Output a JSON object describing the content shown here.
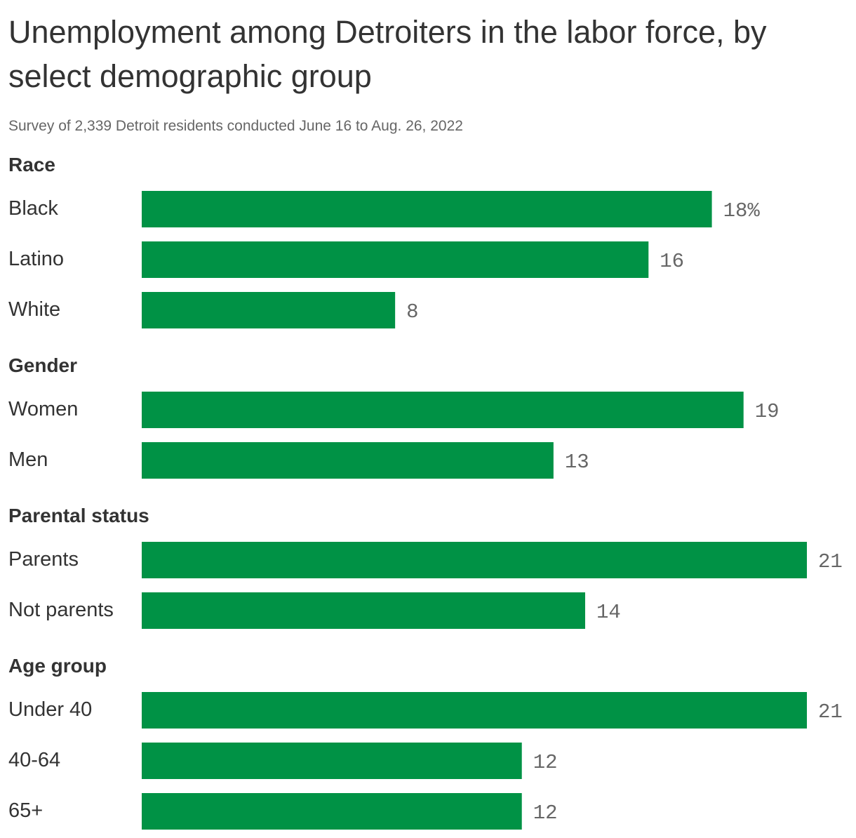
{
  "title": "Unemployment among Detroiters in the labor force, by select demographic group",
  "subtitle": "Survey of 2,339 Detroit residents conducted June 16 to Aug. 26, 2022",
  "colors": {
    "bar": "#009245",
    "text": "#333333",
    "muted": "#666666"
  },
  "chart_data": {
    "type": "bar",
    "orientation": "horizontal",
    "value_suffix_first": "%",
    "xlim": [
      0,
      21
    ],
    "groups": [
      {
        "name": "Race",
        "categories": [
          "Black",
          "Latino",
          "White"
        ],
        "values": [
          18,
          16,
          8
        ],
        "labels": [
          "18%",
          "16",
          "8"
        ]
      },
      {
        "name": "Gender",
        "categories": [
          "Women",
          "Men"
        ],
        "values": [
          19,
          13
        ],
        "labels": [
          "19",
          "13"
        ]
      },
      {
        "name": "Parental status",
        "categories": [
          "Parents",
          "Not parents"
        ],
        "values": [
          21,
          14
        ],
        "labels": [
          "21",
          "14"
        ]
      },
      {
        "name": "Age group",
        "categories": [
          "Under 40",
          "40-64",
          "65+"
        ],
        "values": [
          21,
          12,
          12
        ],
        "labels": [
          "21",
          "12",
          "12"
        ]
      }
    ]
  }
}
